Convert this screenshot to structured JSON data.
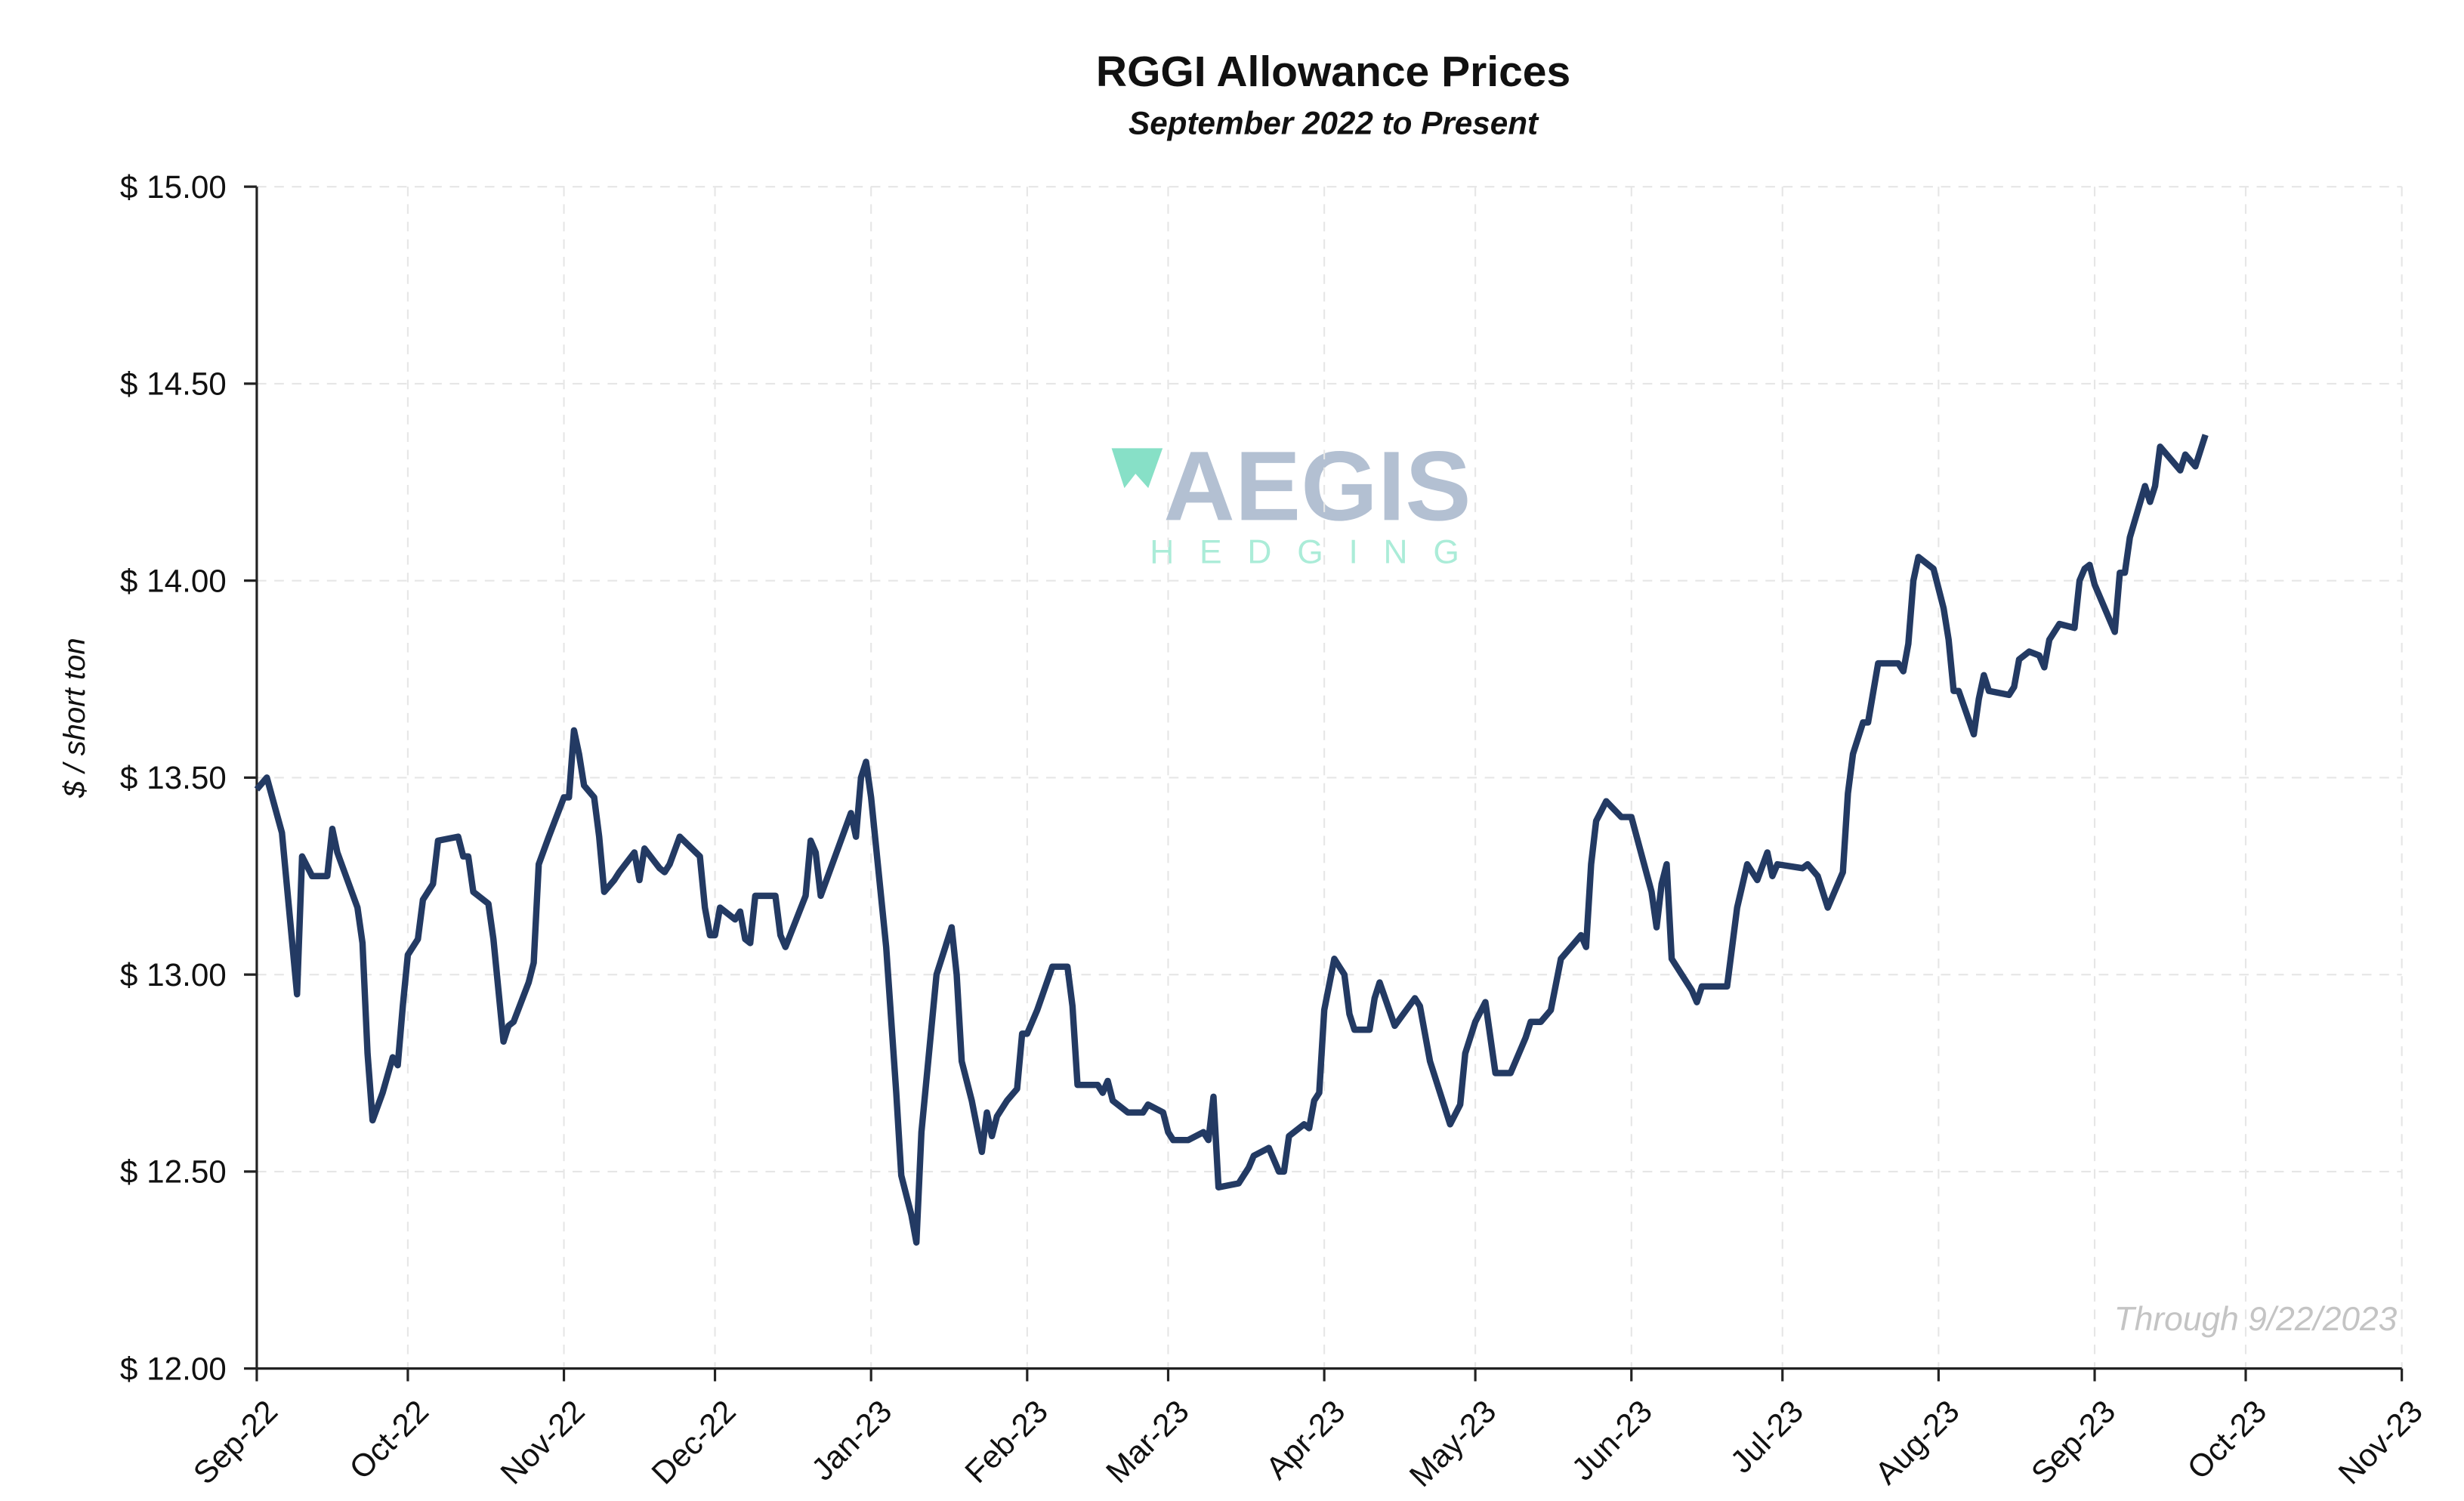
{
  "chart_data": {
    "type": "line",
    "title": "RGGI Allowance Prices",
    "subtitle": "September 2022 to Present",
    "y_label": "$ / short ton",
    "annotation": "Through 9/22/2023",
    "watermark": {
      "brand": "AEGIS",
      "tagline": "HEDGING"
    },
    "xlim": [
      0,
      426
    ],
    "xticks": [
      {
        "value": 0,
        "label": "Sep-22"
      },
      {
        "value": 30,
        "label": "Oct-22"
      },
      {
        "value": 61,
        "label": "Nov-22"
      },
      {
        "value": 91,
        "label": "Dec-22"
      },
      {
        "value": 122,
        "label": "Jan-23"
      },
      {
        "value": 153,
        "label": "Feb-23"
      },
      {
        "value": 181,
        "label": "Mar-23"
      },
      {
        "value": 212,
        "label": "Apr-23"
      },
      {
        "value": 242,
        "label": "May-23"
      },
      {
        "value": 273,
        "label": "Jun-23"
      },
      {
        "value": 303,
        "label": "Jul-23"
      },
      {
        "value": 334,
        "label": "Aug-23"
      },
      {
        "value": 365,
        "label": "Sep-23"
      },
      {
        "value": 395,
        "label": "Oct-23"
      },
      {
        "value": 426,
        "label": "Nov-23"
      }
    ],
    "ylim": [
      12,
      15
    ],
    "yticks": [
      {
        "value": 12,
        "label": "$ 12.00"
      },
      {
        "value": 12.5,
        "label": "$ 12.50"
      },
      {
        "value": 13,
        "label": "$ 13.00"
      },
      {
        "value": 13.5,
        "label": "$ 13.50"
      },
      {
        "value": 14,
        "label": "$ 14.00"
      },
      {
        "value": 14.5,
        "label": "$ 14.50"
      },
      {
        "value": 15,
        "label": "$ 15.00"
      }
    ],
    "grid": true,
    "series": [
      {
        "color": "#233a63",
        "x": [
          0,
          2,
          5,
          8,
          9,
          11,
          14,
          15,
          16,
          18,
          20,
          21,
          22,
          23,
          25,
          27,
          28,
          29,
          30,
          32,
          33,
          35,
          36,
          40,
          41,
          42,
          43,
          46,
          47,
          49,
          50,
          51,
          54,
          55,
          56,
          58,
          61,
          62,
          63,
          64,
          65,
          67,
          68,
          69,
          71,
          72,
          75,
          76,
          77,
          80,
          81,
          82,
          84,
          88,
          89,
          90,
          91,
          92,
          95,
          96,
          97,
          98,
          99,
          103,
          104,
          105,
          109,
          110,
          111,
          112,
          118,
          119,
          120,
          121,
          122,
          125,
          127,
          128,
          130,
          131,
          132,
          135,
          138,
          139,
          140,
          142,
          144,
          145,
          146,
          147,
          149,
          151,
          152,
          153,
          155,
          158,
          161,
          162,
          163,
          167,
          168,
          169,
          170,
          173,
          176,
          177,
          180,
          181,
          182,
          185,
          188,
          189,
          190,
          191,
          195,
          197,
          198,
          201,
          202,
          203,
          204,
          205,
          208,
          209,
          210,
          211,
          212,
          214,
          216,
          217,
          218,
          221,
          222,
          223,
          226,
          230,
          231,
          232,
          233,
          236,
          237,
          239,
          240,
          242,
          244,
          246,
          249,
          251,
          252,
          253,
          255,
          257,
          259,
          261,
          263,
          264,
          265,
          266,
          268,
          271,
          273,
          277,
          278,
          279,
          280,
          281,
          283,
          285,
          286,
          287,
          292,
          294,
          296,
          298,
          300,
          301,
          302,
          307,
          308,
          310,
          312,
          315,
          316,
          317,
          319,
          320,
          322,
          323,
          326,
          327,
          328,
          329,
          330,
          333,
          335,
          336,
          337,
          338,
          341,
          342,
          343,
          344,
          348,
          349,
          350,
          352,
          354,
          355,
          356,
          358,
          361,
          362,
          363,
          364,
          365,
          369,
          370,
          371,
          372,
          375,
          376,
          377,
          378,
          382,
          383,
          385,
          387
        ],
        "values": [
          13.47,
          13.5,
          13.36,
          12.95,
          13.3,
          13.25,
          13.25,
          13.37,
          13.31,
          13.24,
          13.17,
          13.08,
          12.8,
          12.63,
          12.7,
          12.79,
          12.77,
          12.92,
          13.05,
          13.09,
          13.19,
          13.23,
          13.34,
          13.35,
          13.3,
          13.3,
          13.21,
          13.18,
          13.09,
          12.83,
          12.87,
          12.88,
          12.98,
          13.03,
          13.28,
          13.35,
          13.45,
          13.45,
          13.62,
          13.56,
          13.48,
          13.45,
          13.35,
          13.21,
          13.24,
          13.26,
          13.31,
          13.24,
          13.32,
          13.27,
          13.26,
          13.28,
          13.35,
          13.3,
          13.17,
          13.1,
          13.1,
          13.17,
          13.14,
          13.16,
          13.09,
          13.08,
          13.2,
          13.2,
          13.1,
          13.07,
          13.2,
          13.34,
          13.31,
          13.2,
          13.41,
          13.35,
          13.5,
          13.54,
          13.45,
          13.07,
          12.7,
          12.49,
          12.39,
          12.32,
          12.6,
          13.0,
          13.12,
          13.0,
          12.78,
          12.68,
          12.55,
          12.65,
          12.59,
          12.64,
          12.68,
          12.71,
          12.85,
          12.85,
          12.91,
          13.02,
          13.02,
          12.92,
          12.72,
          12.72,
          12.7,
          12.73,
          12.68,
          12.65,
          12.65,
          12.67,
          12.65,
          12.6,
          12.58,
          12.58,
          12.6,
          12.58,
          12.69,
          12.46,
          12.47,
          12.51,
          12.54,
          12.56,
          12.53,
          12.5,
          12.5,
          12.59,
          12.62,
          12.61,
          12.68,
          12.7,
          12.91,
          13.04,
          13.0,
          12.9,
          12.86,
          12.86,
          12.94,
          12.98,
          12.87,
          12.94,
          12.92,
          12.85,
          12.78,
          12.66,
          12.62,
          12.67,
          12.8,
          12.88,
          12.93,
          12.75,
          12.75,
          12.81,
          12.84,
          12.88,
          12.88,
          12.91,
          13.04,
          13.07,
          13.1,
          13.07,
          13.28,
          13.39,
          13.44,
          13.4,
          13.4,
          13.21,
          13.12,
          13.23,
          13.28,
          13.04,
          13.0,
          12.96,
          12.93,
          12.97,
          12.97,
          13.17,
          13.28,
          13.24,
          13.31,
          13.25,
          13.28,
          13.27,
          13.28,
          13.25,
          13.17,
          13.26,
          13.46,
          13.56,
          13.64,
          13.64,
          13.79,
          13.79,
          13.79,
          13.77,
          13.84,
          14.0,
          14.06,
          14.03,
          13.93,
          13.85,
          13.72,
          13.72,
          13.61,
          13.7,
          13.76,
          13.72,
          13.71,
          13.73,
          13.8,
          13.82,
          13.81,
          13.78,
          13.85,
          13.89,
          13.88,
          14.0,
          14.03,
          14.04,
          13.99,
          13.87,
          14.02,
          14.02,
          14.11,
          14.24,
          14.2,
          14.24,
          14.34,
          14.28,
          14.32,
          14.29,
          14.37
        ]
      }
    ]
  }
}
